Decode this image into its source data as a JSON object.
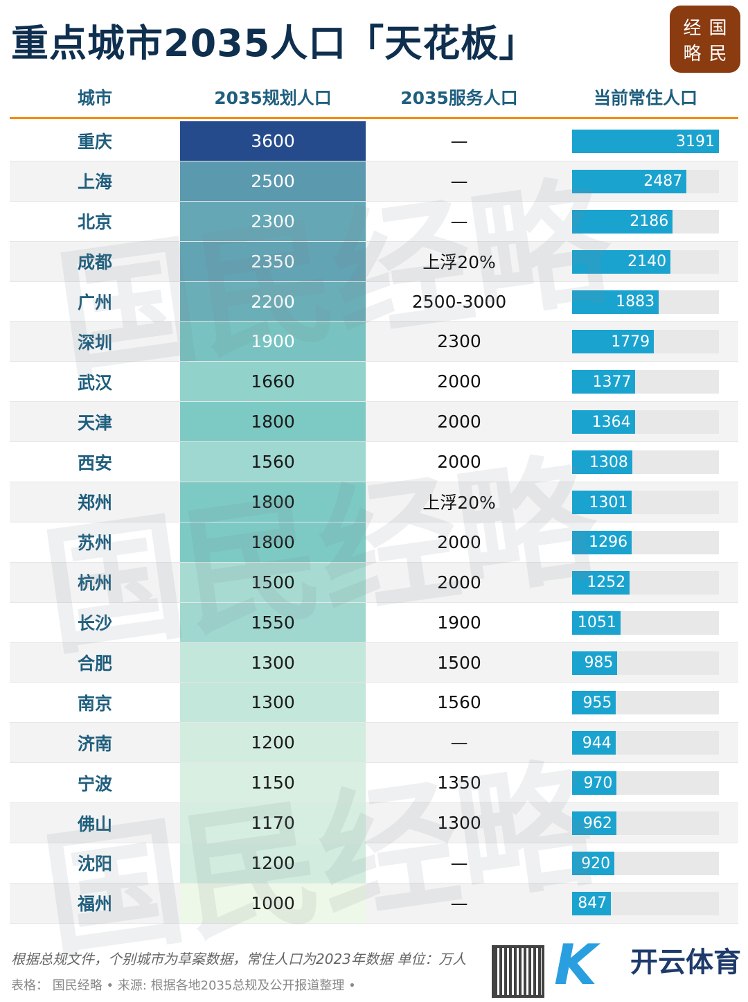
{
  "title": "重点城市2035人口「天花板」",
  "logo": {
    "chars": [
      "经",
      "国",
      "略",
      "民"
    ]
  },
  "watermark": "国民经略",
  "chart_data": {
    "type": "table",
    "title": "重点城市2035人口「天花板」",
    "columns": [
      "城市",
      "2035规划人口",
      "2035服务人口",
      "当前常住人口"
    ],
    "rows": [
      {
        "city": "重庆",
        "plan": 3600,
        "service": "—",
        "current": 3191
      },
      {
        "city": "上海",
        "plan": 2500,
        "service": "—",
        "current": 2487
      },
      {
        "city": "北京",
        "plan": 2300,
        "service": "—",
        "current": 2186
      },
      {
        "city": "成都",
        "plan": 2350,
        "service": "上浮20%",
        "current": 2140
      },
      {
        "city": "广州",
        "plan": 2200,
        "service": "2500-3000",
        "current": 1883
      },
      {
        "city": "深圳",
        "plan": 1900,
        "service": "2300",
        "current": 1779
      },
      {
        "city": "武汉",
        "plan": 1660,
        "service": "2000",
        "current": 1377
      },
      {
        "city": "天津",
        "plan": 1800,
        "service": "2000",
        "current": 1364
      },
      {
        "city": "西安",
        "plan": 1560,
        "service": "2000",
        "current": 1308
      },
      {
        "city": "郑州",
        "plan": 1800,
        "service": "上浮20%",
        "current": 1301
      },
      {
        "city": "苏州",
        "plan": 1800,
        "service": "2000",
        "current": 1296
      },
      {
        "city": "杭州",
        "plan": 1500,
        "service": "2000",
        "current": 1252
      },
      {
        "city": "长沙",
        "plan": 1550,
        "service": "1900",
        "current": 1051
      },
      {
        "city": "合肥",
        "plan": 1300,
        "service": "1500",
        "current": 985
      },
      {
        "city": "南京",
        "plan": 1300,
        "service": "1560",
        "current": 955
      },
      {
        "city": "济南",
        "plan": 1200,
        "service": "—",
        "current": 944
      },
      {
        "city": "宁波",
        "plan": 1150,
        "service": "1350",
        "current": 970
      },
      {
        "city": "佛山",
        "plan": 1170,
        "service": "1300",
        "current": 962
      },
      {
        "city": "沈阳",
        "plan": 1200,
        "service": "—",
        "current": 920
      },
      {
        "city": "福州",
        "plan": 1000,
        "service": "—",
        "current": 847
      }
    ],
    "heatmap_colors": {
      "low": "#eef8e8",
      "mid": "#7dcac5",
      "high": "#264b8c"
    },
    "bar_color": "#1ba3cf",
    "bar_max": 3191
  },
  "footer": {
    "note": "根据总规文件，个别城市为草案数据，常住人口为2023年数据 单位：万人",
    "source": "表格： 国民经略 • 来源: 根据各地2035总规及公开报道整理 •",
    "brand": "开云体育"
  },
  "colors": {
    "title": "#0f2f4f",
    "header_text": "#1f5e7e",
    "header_rule": "#f28a00",
    "logo_bg": "#8a3b10"
  }
}
